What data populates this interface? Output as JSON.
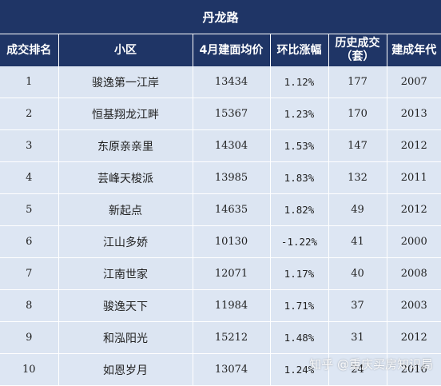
{
  "table": {
    "title": "丹龙路",
    "headers": [
      "成交排名",
      "小区",
      "4月建面均价",
      "环比涨幅",
      "历史成交\n（套）",
      "建成年代"
    ],
    "rows": [
      [
        "1",
        "骏逸第一江岸",
        "13434",
        "1.12%",
        "177",
        "2007"
      ],
      [
        "2",
        "恒基翔龙江畔",
        "15367",
        "1.23%",
        "170",
        "2013"
      ],
      [
        "3",
        "东原亲亲里",
        "14304",
        "1.53%",
        "147",
        "2012"
      ],
      [
        "4",
        "芸峰天梭派",
        "13985",
        "1.83%",
        "132",
        "2011"
      ],
      [
        "5",
        "新起点",
        "14635",
        "1.82%",
        "49",
        "2012"
      ],
      [
        "6",
        "江山多娇",
        "10130",
        "-1.22%",
        "41",
        "2000"
      ],
      [
        "7",
        "江南世家",
        "12071",
        "1.17%",
        "40",
        "2008"
      ],
      [
        "8",
        "骏逸天下",
        "11984",
        "1.71%",
        "37",
        "2003"
      ],
      [
        "9",
        "和泓阳光",
        "15212",
        "1.48%",
        "31",
        "2012"
      ],
      [
        "10",
        "如恩岁月",
        "13074",
        "1.24%",
        "24",
        "2016"
      ]
    ]
  },
  "watermark": {
    "text": "知乎 @重庆买房知识局",
    "icon": "at-sign-icon"
  },
  "colors": {
    "header_bg": "#1f3566",
    "row_bg": "#dce5f2"
  }
}
